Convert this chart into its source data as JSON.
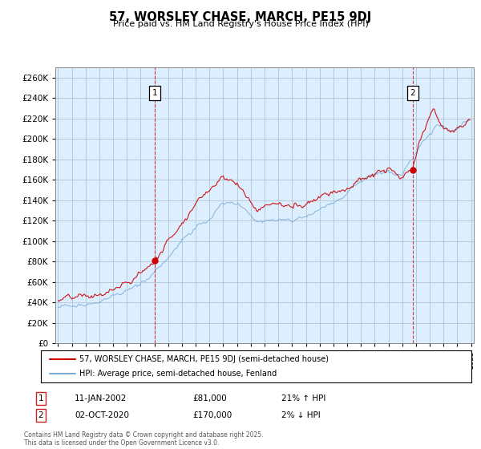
{
  "title": "57, WORSLEY CHASE, MARCH, PE15 9DJ",
  "subtitle": "Price paid vs. HM Land Registry's House Price Index (HPI)",
  "ylim": [
    0,
    270000
  ],
  "yticks": [
    0,
    20000,
    40000,
    60000,
    80000,
    100000,
    120000,
    140000,
    160000,
    180000,
    200000,
    220000,
    240000,
    260000
  ],
  "year_start": 1995,
  "year_end": 2025,
  "red_color": "#cc0000",
  "blue_color": "#7aaed6",
  "plot_bg_color": "#ddeeff",
  "purchase1_year": 2002.04,
  "purchase1_price": 81000,
  "purchase2_year": 2020.75,
  "purchase2_price": 170000,
  "legend_line1": "57, WORSLEY CHASE, MARCH, PE15 9DJ (semi-detached house)",
  "legend_line2": "HPI: Average price, semi-detached house, Fenland",
  "purchase1_note": "11-JAN-2002",
  "purchase1_pct": "21% ↑ HPI",
  "purchase2_note": "02-OCT-2020",
  "purchase2_pct": "2% ↓ HPI",
  "footnote": "Contains HM Land Registry data © Crown copyright and database right 2025.\nThis data is licensed under the Open Government Licence v3.0.",
  "grid_color": "#aabbcc",
  "background_color": "#ffffff"
}
